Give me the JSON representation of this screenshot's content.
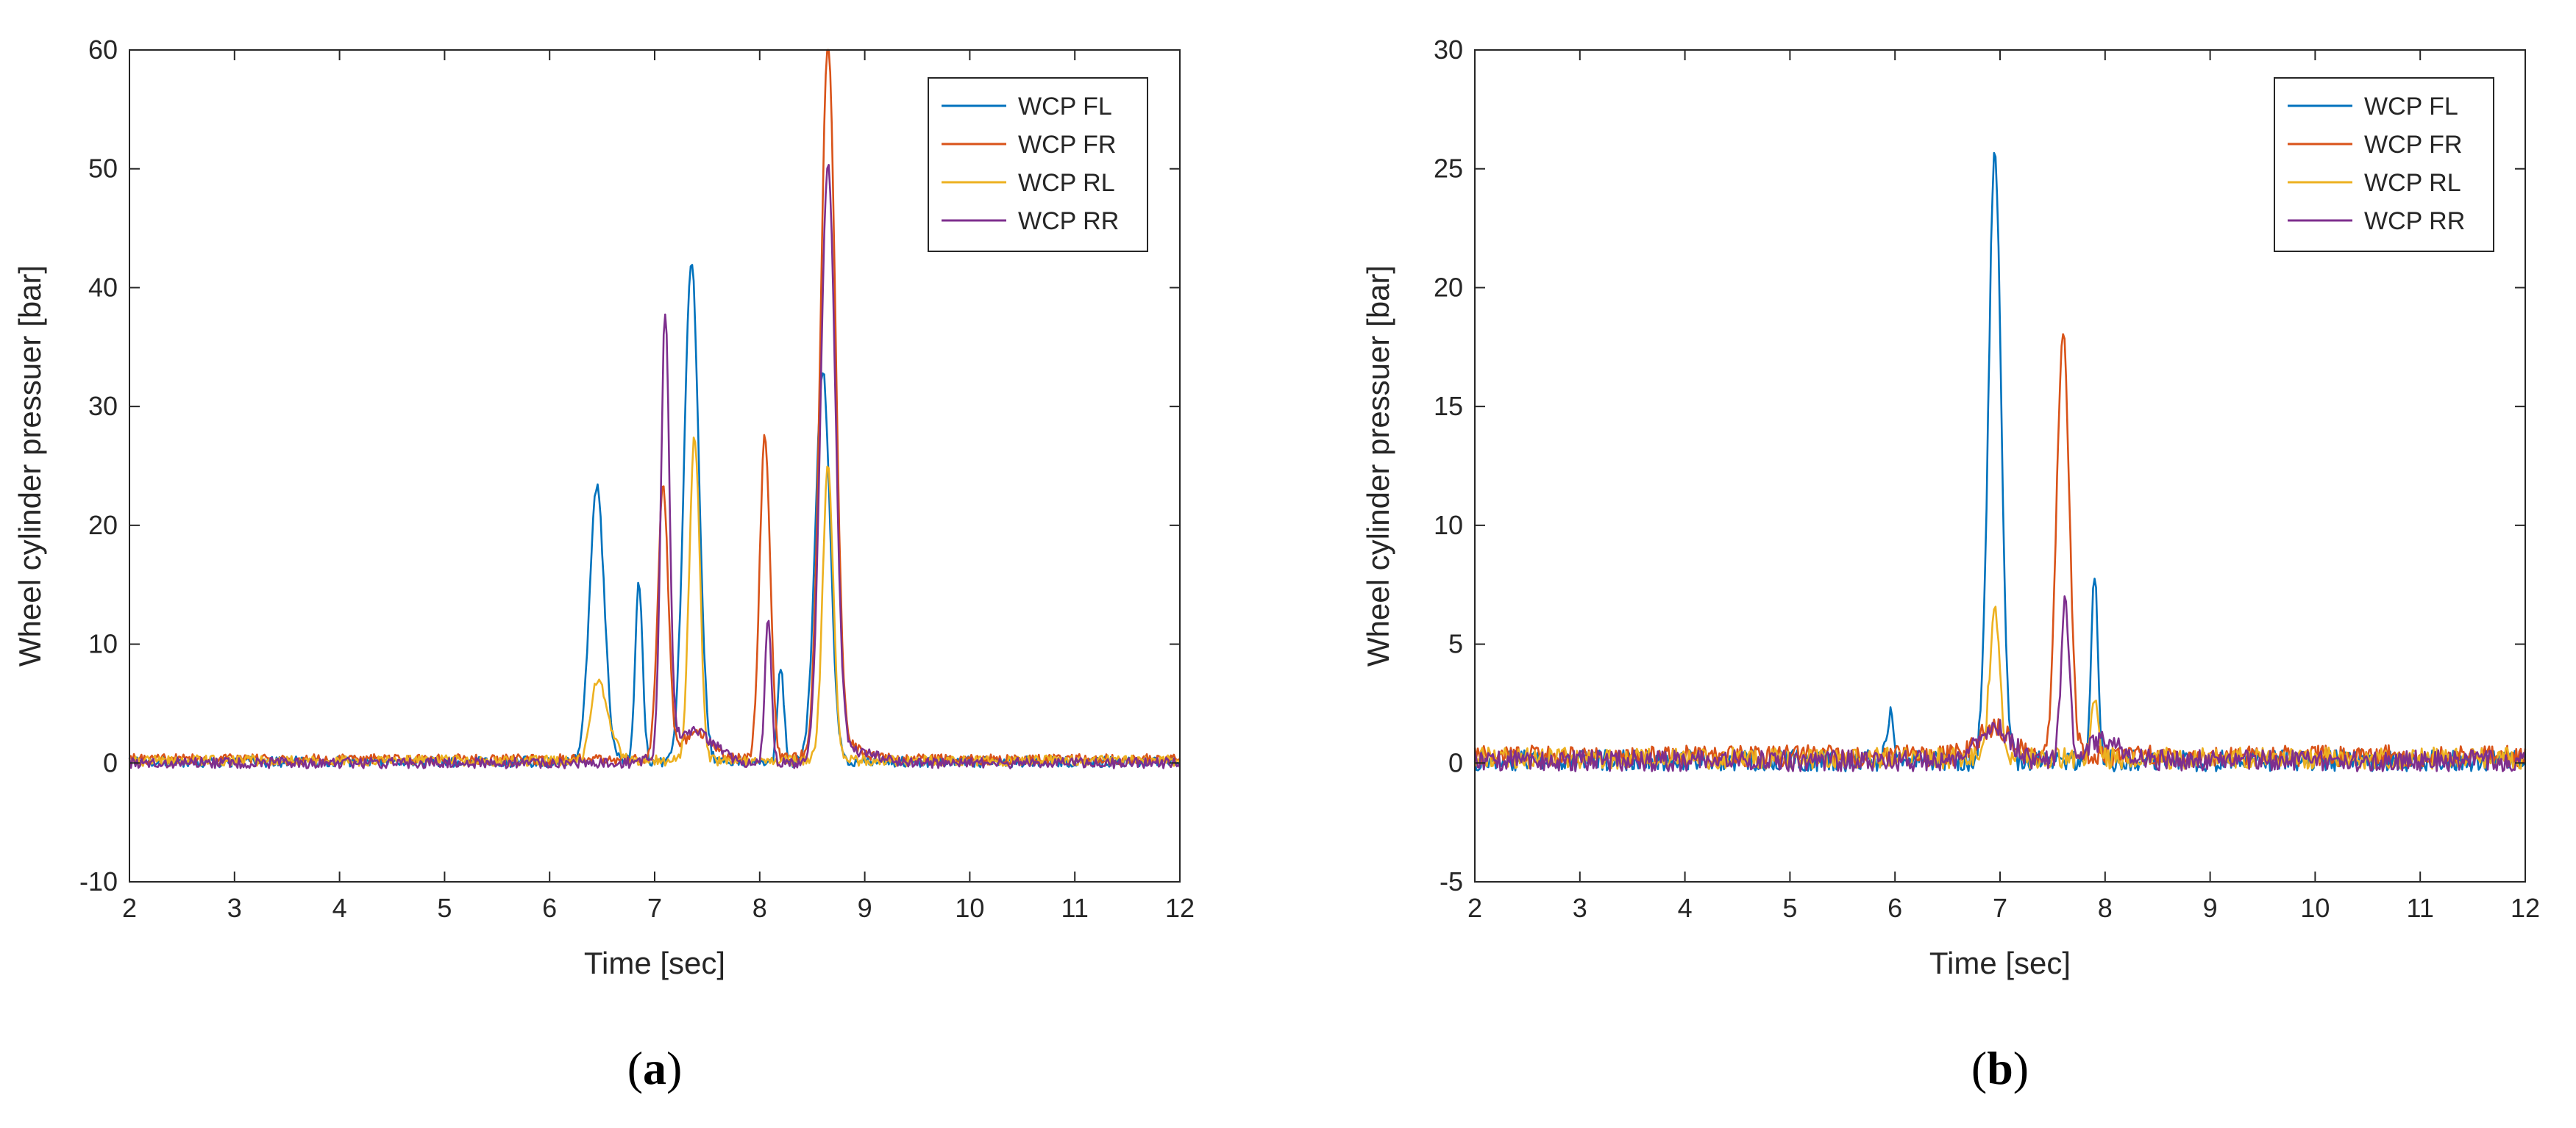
{
  "figure": {
    "colors": {
      "WCP FL": "#0072BD",
      "WCP FR": "#D95319",
      "WCP RL": "#EDB120",
      "WCP RR": "#7E2F8E",
      "axis": "#262626"
    }
  },
  "chart_data": [
    {
      "type": "line",
      "panel_label": "a",
      "title": "",
      "xlabel": "Time [sec]",
      "ylabel": "Wheel cylinder pressuer [bar]",
      "xlim": [
        2,
        12
      ],
      "ylim": [
        -10,
        60
      ],
      "xticks": [
        2,
        3,
        4,
        5,
        6,
        7,
        8,
        9,
        10,
        11,
        12
      ],
      "yticks": [
        -10,
        0,
        10,
        20,
        30,
        40,
        50,
        60
      ],
      "legend_position": "top-right",
      "noise_amplitude": 0.45,
      "series": [
        {
          "name": "WCP FL",
          "baseline": 0.1,
          "peaks": [
            [
              6.45,
              23.2,
              0.07
            ],
            [
              6.85,
              15.2,
              0.035
            ],
            [
              7.35,
              42.3,
              0.07
            ],
            [
              8.2,
              8.2,
              0.03
            ],
            [
              8.6,
              33.0,
              0.07
            ]
          ]
        },
        {
          "name": "WCP FR",
          "baseline": 0.3,
          "peaks": [
            [
              7.08,
              23.0,
              0.05
            ],
            [
              7.4,
              2.5,
              0.15
            ],
            [
              8.05,
              27.7,
              0.05
            ],
            [
              8.65,
              59.8,
              0.07
            ],
            [
              8.75,
              1.5,
              0.2
            ]
          ]
        },
        {
          "name": "WCP RL",
          "baseline": 0.2,
          "peaks": [
            [
              6.45,
              5.8,
              0.06
            ],
            [
              6.55,
              3.0,
              0.08
            ],
            [
              7.38,
              27.6,
              0.05
            ],
            [
              8.65,
              25.0,
              0.05
            ]
          ]
        },
        {
          "name": "WCP RR",
          "baseline": 0.0,
          "peaks": [
            [
              7.1,
              36.7,
              0.04
            ],
            [
              7.35,
              2.8,
              0.2
            ],
            [
              8.08,
              12.3,
              0.03
            ],
            [
              8.65,
              49.8,
              0.07
            ],
            [
              8.9,
              1.0,
              0.2
            ]
          ]
        }
      ]
    },
    {
      "type": "line",
      "panel_label": "b",
      "title": "",
      "xlabel": "Time [sec]",
      "ylabel": "Wheel cylinder pressuer [bar]",
      "xlim": [
        2,
        12
      ],
      "ylim": [
        -5,
        30
      ],
      "xticks": [
        2,
        3,
        4,
        5,
        6,
        7,
        8,
        9,
        10,
        11,
        12
      ],
      "yticks": [
        -5,
        0,
        5,
        10,
        15,
        20,
        25,
        30
      ],
      "legend_position": "top-right",
      "noise_amplitude": 0.45,
      "series": [
        {
          "name": "WCP FL",
          "baseline": 0.1,
          "peaks": [
            [
              5.95,
              2.0,
              0.03
            ],
            [
              6.95,
              25.6,
              0.06
            ],
            [
              7.9,
              8.0,
              0.03
            ]
          ]
        },
        {
          "name": "WCP FR",
          "baseline": 0.3,
          "peaks": [
            [
              6.95,
              1.5,
              0.15
            ],
            [
              7.6,
              18.3,
              0.06
            ]
          ]
        },
        {
          "name": "WCP RL",
          "baseline": 0.2,
          "peaks": [
            [
              6.95,
              6.2,
              0.05
            ],
            [
              7.9,
              2.5,
              0.04
            ]
          ]
        },
        {
          "name": "WCP RR",
          "baseline": 0.1,
          "peaks": [
            [
              6.95,
              1.5,
              0.15
            ],
            [
              7.62,
              6.6,
              0.04
            ],
            [
              8.0,
              1.0,
              0.15
            ]
          ]
        }
      ]
    }
  ]
}
